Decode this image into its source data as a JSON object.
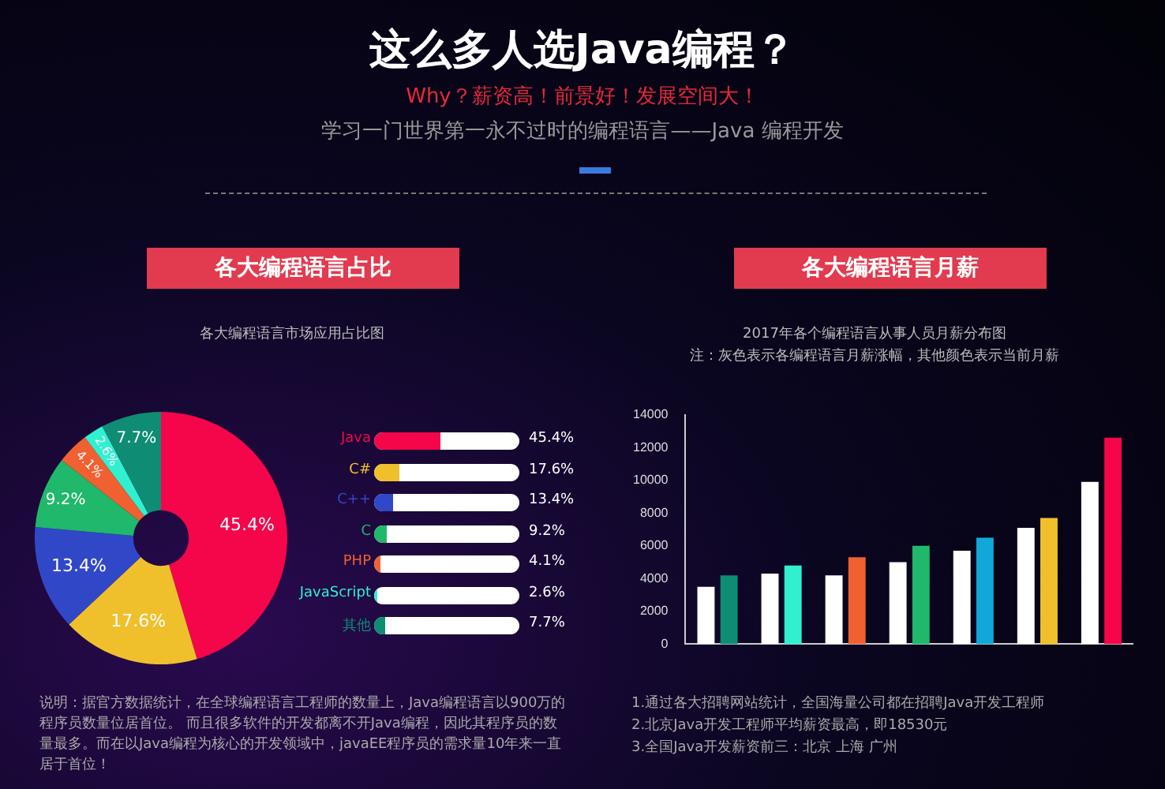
{
  "chart_data": [
    {
      "type": "other",
      "title": "这么多人选Java编程？",
      "subtitle": "Why？薪资高！前景好！发展空间大！",
      "annotations": [
        "学习一门世界第一永不过时的编程语言——Java 编程开发"
      ]
    },
    {
      "type": "donut",
      "title": "各大编程语言占比",
      "subtitle": "各大编程语言市场应用占比图",
      "categories": [
        "Java",
        "C#",
        "C++",
        "C",
        "PHP",
        "JavaScript",
        "其他"
      ],
      "values": [
        45.4,
        17.6,
        13.4,
        9.2,
        4.1,
        2.6,
        7.7
      ],
      "colors": [
        "#f5054a",
        "#f0c02c",
        "#3048c8",
        "#20b86a",
        "#f06030",
        "#30f0d0",
        "#0e8c74"
      ],
      "value_labels": [
        "45.4%",
        "17.6%",
        "13.4%",
        "9.2%",
        "4.1%",
        "2.6%",
        "7.7%"
      ],
      "legend": "right",
      "annotations": [
        "说明：据官方数据统计，在全球编程语言工程师的数量上，Java编程语言以900万的程序员数量位居首位。 而且很多软件的开发都离不开Java编程，因此其程序员的数量最多。而在以Java编程为核心的开发领域中，javaEE程序员的需求量10年来一直居于首位！"
      ]
    },
    {
      "type": "bar",
      "title": "各大编程语言月薪",
      "subtitle": "2017年各个编程语言从事人员月薪分布图",
      "categories": [
        null,
        null,
        null,
        null,
        null,
        null,
        null
      ],
      "series": [
        {
          "color": "#ffffff",
          "values": [
            3500,
            4300,
            4200,
            5000,
            5700,
            7100,
            9900
          ]
        },
        {
          "colors": [
            "#0e8c74",
            "#30f0d0",
            "#f06030",
            "#20b86a",
            "#10a8d8",
            "#f0c02c",
            "#f5054a"
          ],
          "values": [
            4200,
            4800,
            5300,
            6000,
            6500,
            7700,
            12600
          ]
        }
      ],
      "ylim": [
        0,
        14000
      ],
      "yticks": [
        0,
        2000,
        4000,
        6000,
        8000,
        10000,
        12000,
        14000
      ],
      "annotations": [
        "注：灰色表示各编程语言月薪涨幅，其他颜色表示当前月薪",
        "1.通过各大招聘网站统计，全国海量公司都在招聘Java开发工程师",
        "2.北京Java开发工程师平均薪资最高，即18530元",
        "3.全国Java开发薪资前三：北京 上海 广州"
      ]
    }
  ]
}
